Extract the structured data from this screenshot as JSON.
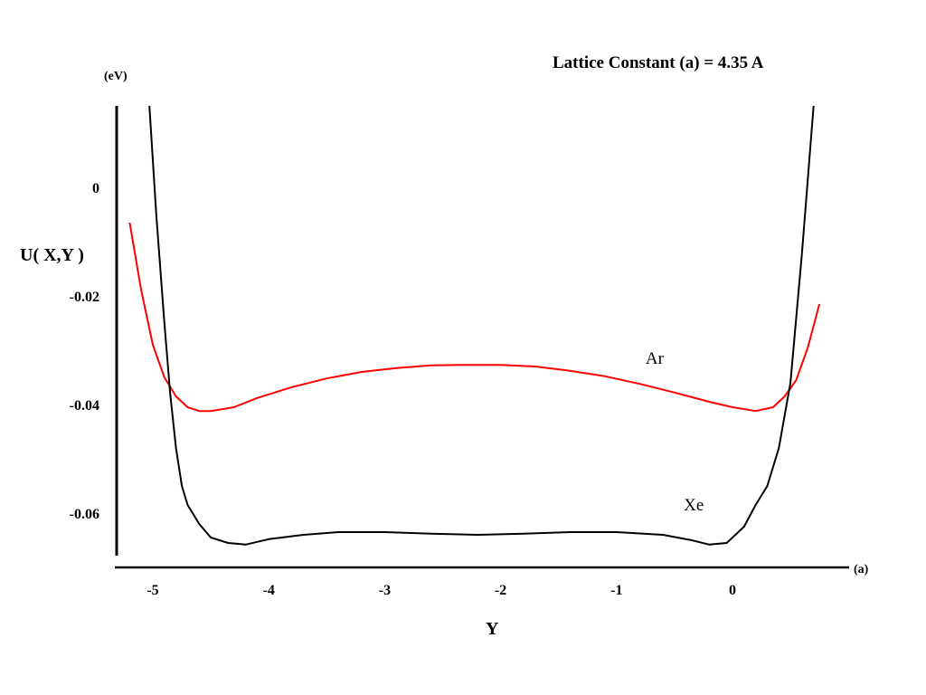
{
  "chart_data": {
    "type": "line",
    "title": "Lattice Constant (a) = 4.35 A",
    "xlabel": "Y",
    "ylabel": "U( X,Y )",
    "x_unit": "(a)",
    "y_unit": "(eV)",
    "xlim": [
      -5.25,
      0.78
    ],
    "ylim": [
      -0.068,
      0.015
    ],
    "x_ticks": [
      -5,
      -4,
      -3,
      -2,
      -1,
      0
    ],
    "x_tick_labels": [
      "-5",
      "-4",
      "-3",
      "-2",
      "-1",
      "0"
    ],
    "y_ticks": [
      0,
      -0.02,
      -0.04,
      -0.06
    ],
    "y_tick_labels": [
      "0",
      "-0.02",
      "-0.04",
      "-0.06"
    ],
    "grid": false,
    "legend": "none",
    "series": [
      {
        "name": "Ar",
        "color": "#ff0000",
        "x": [
          -5.2,
          -5.1,
          -5.0,
          -4.9,
          -4.8,
          -4.7,
          -4.6,
          -4.5,
          -4.3,
          -4.1,
          -3.8,
          -3.5,
          -3.2,
          -2.9,
          -2.6,
          -2.3,
          -2.0,
          -1.7,
          -1.4,
          -1.1,
          -0.8,
          -0.5,
          -0.2,
          0.0,
          0.2,
          0.35,
          0.45,
          0.55,
          0.65,
          0.75
        ],
        "y": [
          -0.0065,
          -0.019,
          -0.029,
          -0.035,
          -0.0385,
          -0.0405,
          -0.0412,
          -0.0412,
          -0.0405,
          -0.0388,
          -0.0368,
          -0.0352,
          -0.034,
          -0.0333,
          -0.0328,
          -0.0327,
          -0.0327,
          -0.033,
          -0.0338,
          -0.0348,
          -0.0362,
          -0.0378,
          -0.0395,
          -0.0405,
          -0.0412,
          -0.0405,
          -0.0385,
          -0.0355,
          -0.0295,
          -0.0215
        ]
      },
      {
        "name": "Xe",
        "color": "#000000",
        "x": [
          -5.03,
          -4.97,
          -4.9,
          -4.85,
          -4.8,
          -4.75,
          -4.7,
          -4.6,
          -4.5,
          -4.35,
          -4.2,
          -4.0,
          -3.7,
          -3.4,
          -3.0,
          -2.6,
          -2.2,
          -1.8,
          -1.4,
          -1.0,
          -0.6,
          -0.35,
          -0.2,
          -0.05,
          0.1,
          0.2,
          0.3,
          0.4,
          0.5,
          0.6,
          0.7
        ],
        "y": [
          0.015,
          -0.005,
          -0.025,
          -0.038,
          -0.048,
          -0.055,
          -0.0585,
          -0.062,
          -0.0645,
          -0.0655,
          -0.0658,
          -0.0648,
          -0.064,
          -0.0635,
          -0.0635,
          -0.0638,
          -0.064,
          -0.0638,
          -0.0635,
          -0.0635,
          -0.064,
          -0.065,
          -0.0658,
          -0.0655,
          -0.0625,
          -0.0585,
          -0.055,
          -0.048,
          -0.036,
          -0.012,
          0.015
        ]
      }
    ]
  }
}
